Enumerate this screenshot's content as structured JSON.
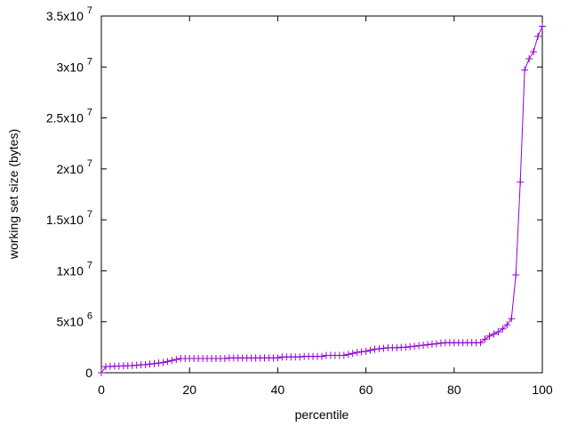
{
  "chart_data": {
    "type": "line",
    "xlabel": "percentile",
    "ylabel": "working set size (bytes)",
    "x": [
      0,
      1,
      2,
      3,
      4,
      5,
      6,
      7,
      8,
      9,
      10,
      11,
      12,
      13,
      14,
      15,
      16,
      17,
      18,
      19,
      20,
      21,
      22,
      23,
      24,
      25,
      26,
      27,
      28,
      29,
      30,
      31,
      32,
      33,
      34,
      35,
      36,
      37,
      38,
      39,
      40,
      41,
      42,
      43,
      44,
      45,
      46,
      47,
      48,
      49,
      50,
      51,
      52,
      53,
      54,
      55,
      56,
      57,
      58,
      59,
      60,
      61,
      62,
      63,
      64,
      65,
      66,
      67,
      68,
      69,
      70,
      71,
      72,
      73,
      74,
      75,
      76,
      77,
      78,
      79,
      80,
      81,
      82,
      83,
      84,
      85,
      86,
      87,
      88,
      89,
      90,
      91,
      92,
      93,
      94,
      95,
      96,
      97,
      98,
      99,
      100
    ],
    "series": [
      {
        "color": "#9400d3",
        "values": [
          0,
          600000,
          620000,
          640000,
          650000,
          670000,
          690000,
          710000,
          740000,
          770000,
          800000,
          850000,
          900000,
          950000,
          1000000,
          1100000,
          1200000,
          1300000,
          1400000,
          1400000,
          1400000,
          1400000,
          1400000,
          1400000,
          1400000,
          1400000,
          1400000,
          1400000,
          1400000,
          1450000,
          1450000,
          1450000,
          1450000,
          1450000,
          1450000,
          1450000,
          1450000,
          1450000,
          1450000,
          1450000,
          1450000,
          1550000,
          1550000,
          1550000,
          1550000,
          1550000,
          1600000,
          1600000,
          1600000,
          1600000,
          1600000,
          1700000,
          1700000,
          1700000,
          1700000,
          1700000,
          1800000,
          1900000,
          2000000,
          2050000,
          2100000,
          2200000,
          2300000,
          2350000,
          2400000,
          2450000,
          2450000,
          2450000,
          2500000,
          2500000,
          2550000,
          2600000,
          2650000,
          2700000,
          2750000,
          2800000,
          2850000,
          2900000,
          2950000,
          2950000,
          2950000,
          2950000,
          2950000,
          2950000,
          2950000,
          2950000,
          2950000,
          3300000,
          3600000,
          3800000,
          4000000,
          4300000,
          4700000,
          5300000,
          9600000,
          18700000,
          29700000,
          30800000,
          31500000,
          33000000,
          34000000
        ]
      }
    ],
    "xlim": [
      0,
      100
    ],
    "xticks": [
      0,
      20,
      40,
      60,
      80,
      100
    ],
    "ylim": [
      0,
      35000000
    ],
    "yticks": [
      0,
      {
        "value": 5000000,
        "label": "5x10",
        "exponent": "6"
      },
      {
        "value": 10000000,
        "label": "1x10",
        "exponent": "7"
      },
      {
        "value": 15000000,
        "label": "1.5x10",
        "exponent": "7"
      },
      {
        "value": 20000000,
        "label": "2x10",
        "exponent": "7"
      },
      {
        "value": 25000000,
        "label": "2.5x10",
        "exponent": "7"
      },
      {
        "value": 30000000,
        "label": "3x10",
        "exponent": "7"
      },
      {
        "value": 35000000,
        "label": "3.5x10",
        "exponent": "7"
      }
    ]
  }
}
